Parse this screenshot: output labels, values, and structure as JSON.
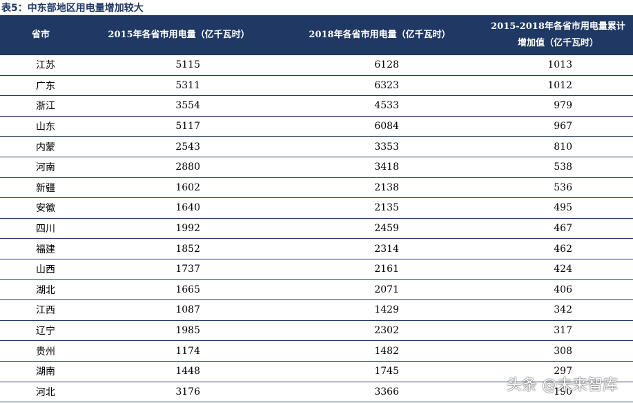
{
  "title": "表5：中东部地区用电量增加较大",
  "table": {
    "headers": [
      "省市",
      "2015年各省市用电量（亿千瓦时）",
      "2018年各省市用电量（亿千瓦时）",
      "2015-2018年各省市用电量累计增加值（亿千瓦时）"
    ],
    "rows": [
      [
        "江苏",
        5115,
        6128,
        1013
      ],
      [
        "广东",
        5311,
        6323,
        1012
      ],
      [
        "浙江",
        3554,
        4533,
        979
      ],
      [
        "山东",
        5117,
        6084,
        967
      ],
      [
        "内蒙",
        2543,
        3353,
        810
      ],
      [
        "河南",
        2880,
        3418,
        538
      ],
      [
        "新疆",
        1602,
        2138,
        536
      ],
      [
        "安徽",
        1640,
        2135,
        495
      ],
      [
        "四川",
        1992,
        2459,
        467
      ],
      [
        "福建",
        1852,
        2314,
        462
      ],
      [
        "山西",
        1737,
        2161,
        424
      ],
      [
        "湖北",
        1665,
        2071,
        406
      ],
      [
        "江西",
        1087,
        1429,
        342
      ],
      [
        "辽宁",
        1985,
        2302,
        317
      ],
      [
        "贵州",
        1174,
        1482,
        308
      ],
      [
        "湖南",
        1448,
        1745,
        297
      ],
      [
        "河北",
        3176,
        3366,
        190
      ]
    ]
  },
  "watermark": "头条 @未来智库"
}
